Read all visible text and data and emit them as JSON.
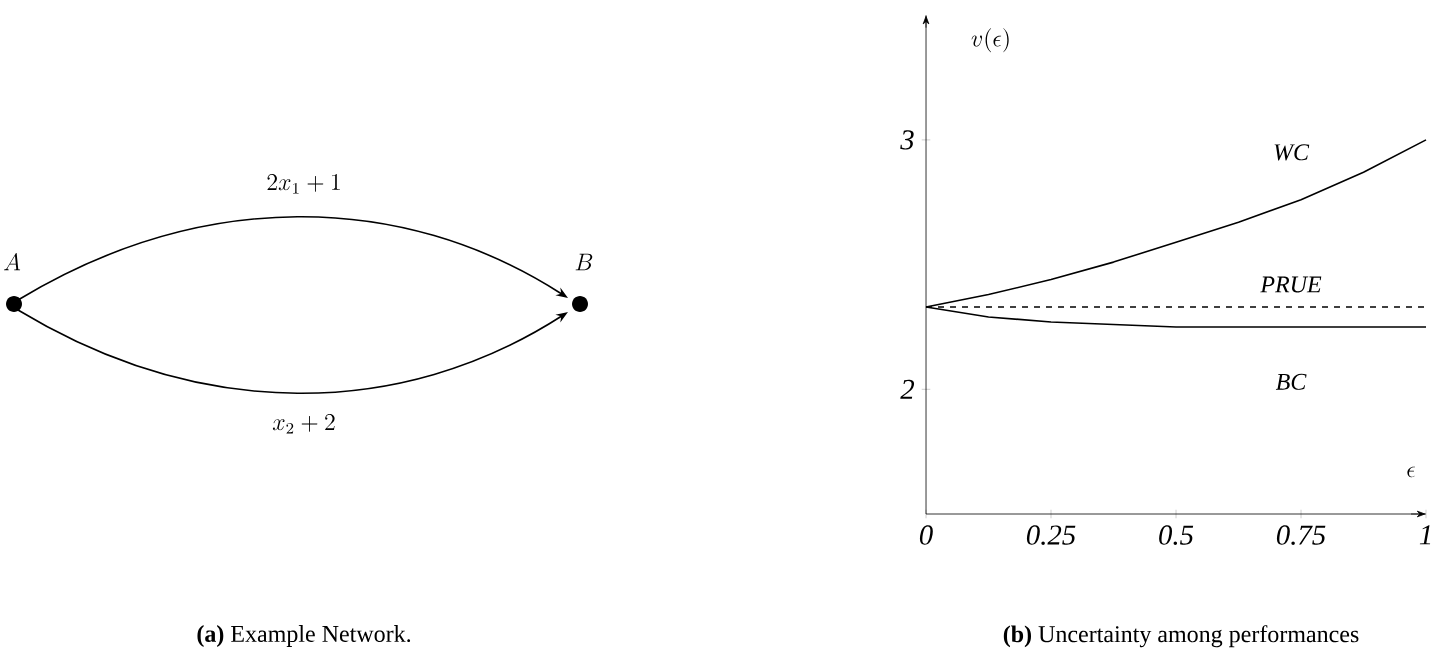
{
  "chart_data": [
    {
      "type": "other",
      "title": "**(a)** Example Network.",
      "annotations": [
        "A",
        "B",
        "2x_1+1",
        "x_2+2"
      ]
    },
    {
      "type": "line",
      "title": "**(b)** Uncertainty among performances",
      "xlabel": "\\epsilon",
      "ylabel": "v(\\epsilon)",
      "x": [
        0,
        0.125,
        0.25,
        0.375,
        0.5,
        0.625,
        0.75,
        0.875,
        1
      ],
      "series": [
        {
          "name": "WC",
          "color": "#000000",
          "line_style": "solid",
          "values": [
            2.33,
            2.38,
            2.44,
            2.51,
            2.59,
            2.67,
            2.76,
            2.87,
            3.0
          ]
        },
        {
          "name": "PRUE",
          "color": "#000000",
          "line_style": "dashed",
          "values": [
            2.33,
            2.33,
            2.33,
            2.33,
            2.33,
            2.33,
            2.33,
            2.33,
            2.33
          ]
        },
        {
          "name": "BC",
          "color": "#000000",
          "line_style": "solid",
          "values": [
            2.33,
            2.29,
            2.27,
            2.26,
            2.25,
            2.25,
            2.25,
            2.25,
            2.25
          ]
        }
      ],
      "xlim": [
        0,
        1
      ],
      "ylim": [
        1.5,
        3.5
      ],
      "xticks": [
        0,
        0.25,
        0.5,
        0.75,
        1
      ],
      "yticks": [
        2,
        3
      ],
      "marker": "none",
      "grid": false
    }
  ]
}
